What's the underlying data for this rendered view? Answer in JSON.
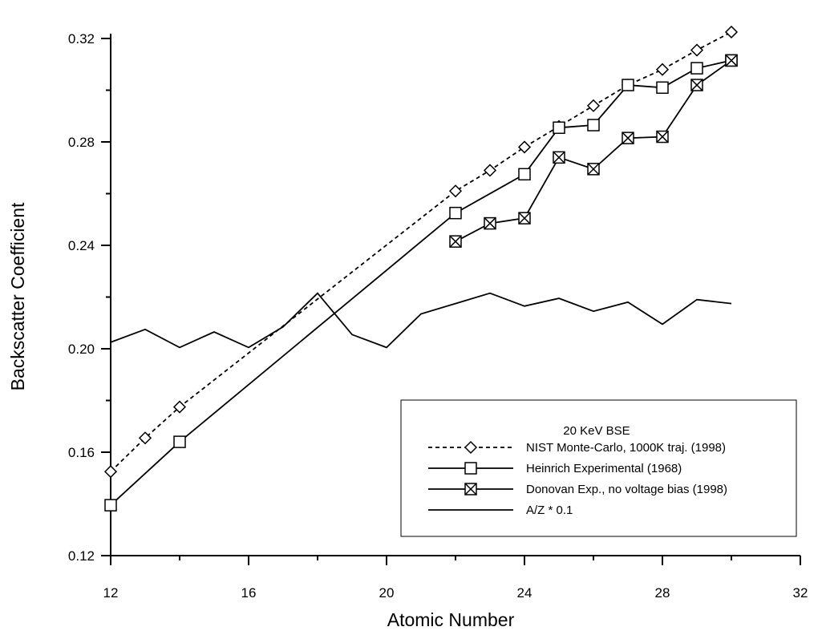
{
  "chart_data": {
    "type": "line",
    "xlabel": "Atomic Number",
    "ylabel": "Backscatter Coefficient",
    "xlim": [
      12,
      32
    ],
    "ylim": [
      0.12,
      0.32
    ],
    "xticks": [
      12,
      16,
      20,
      24,
      28,
      32
    ],
    "yticks": [
      0.12,
      0.16,
      0.2,
      0.24,
      0.28,
      0.32
    ],
    "ytick_labels": [
      "0.12",
      "0.16",
      "0.20",
      "0.24",
      "0.28",
      "0.32"
    ],
    "grid": false,
    "legend_position": "bottom-right",
    "legend_title": "20 KeV BSE",
    "series": [
      {
        "name": "NIST Monte-Carlo, 1000K traj.  (1998)",
        "line_style": "dashed",
        "marker": "diamond",
        "x": [
          12,
          13,
          14,
          22,
          23,
          24,
          25,
          26,
          27,
          28,
          29,
          30
        ],
        "y": [
          0.1525,
          0.1655,
          0.1775,
          0.261,
          0.269,
          0.278,
          0.286,
          0.294,
          0.302,
          0.308,
          0.3155,
          0.3225
        ]
      },
      {
        "name": "Heinrich Experimental (1968)",
        "line_style": "solid",
        "marker": "square",
        "x": [
          12,
          14,
          22,
          24,
          25,
          26,
          27,
          28,
          29,
          30
        ],
        "y": [
          0.1395,
          0.164,
          0.2525,
          0.2675,
          0.2855,
          0.2865,
          0.302,
          0.301,
          0.3085,
          0.3115
        ]
      },
      {
        "name": "Donovan Exp., no voltage bias (1998)",
        "line_style": "solid",
        "marker": "crossed-square",
        "x": [
          22,
          23,
          24,
          25,
          26,
          27,
          28,
          29,
          30
        ],
        "y": [
          0.2415,
          0.2485,
          0.2505,
          0.274,
          0.2695,
          0.2815,
          0.282,
          0.302,
          0.3115
        ]
      },
      {
        "name": "A/Z * 0.1",
        "line_style": "solid",
        "marker": "none",
        "x": [
          12,
          13,
          14,
          15,
          16,
          17,
          18,
          19,
          20,
          21,
          22,
          23,
          24,
          25,
          26,
          27,
          28,
          29,
          30
        ],
        "y": [
          0.2025,
          0.2075,
          0.2005,
          0.2065,
          0.2005,
          0.2085,
          0.2215,
          0.2055,
          0.2005,
          0.2135,
          0.2175,
          0.2215,
          0.2165,
          0.2195,
          0.2145,
          0.218,
          0.2095,
          0.219,
          0.2175
        ]
      }
    ]
  }
}
